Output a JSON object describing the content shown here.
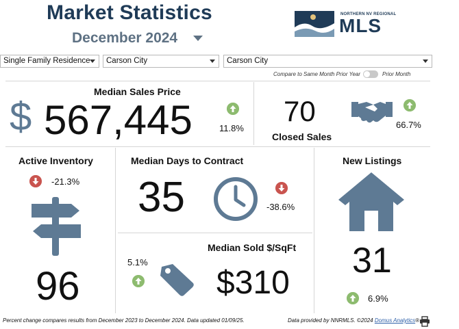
{
  "header": {
    "title": "Market Statistics",
    "month": "December 2024",
    "logo_small": "NORTHERN NV REGIONAL",
    "logo_big": "MLS"
  },
  "filters": {
    "property_type": "Single Family Residence",
    "city": "Carson City",
    "area": "Carson City"
  },
  "compare_toggle": {
    "left_label": "Compare to Same Month Prior Year",
    "right_label": "Prior Month",
    "on": false
  },
  "stats": {
    "median_sales_price": {
      "label": "Median Sales Price",
      "currency": "$",
      "value": "567,445",
      "change": "11.8%",
      "direction": "up"
    },
    "closed_sales": {
      "label": "Closed Sales",
      "value": "70",
      "change": "66.7%",
      "direction": "up"
    },
    "active_inventory": {
      "label": "Active Inventory",
      "value": "96",
      "change": "-21.3%",
      "direction": "down"
    },
    "median_days_to_contract": {
      "label": "Median Days to Contract",
      "value": "35",
      "change": "-38.6%",
      "direction": "down"
    },
    "median_sold_sqft": {
      "label": "Median Sold $/SqFt",
      "value": "$310",
      "change": "5.1%",
      "direction": "up"
    },
    "new_listings": {
      "label": "New Listings",
      "value": "31",
      "change": "6.9%",
      "direction": "up"
    }
  },
  "icons": {
    "dollar": "dollar-icon",
    "handshake": "handshake-icon",
    "signpost": "signpost-icon",
    "clock": "clock-icon",
    "price_tag": "price-tag-icon",
    "house": "house-icon",
    "print": "print-icon"
  },
  "colors": {
    "navy": "#1f3b57",
    "slate": "#5e7a94",
    "up": "#8dbb6f",
    "down": "#c9544f"
  },
  "footer": {
    "left": "Percent change compares results from December 2023 to December 2024.  Data updated 01/09/25.",
    "right_prefix": "Data provided by NNRMLS. ©2024",
    "right_link": "Domus Analytics",
    "right_suffix": "®"
  }
}
